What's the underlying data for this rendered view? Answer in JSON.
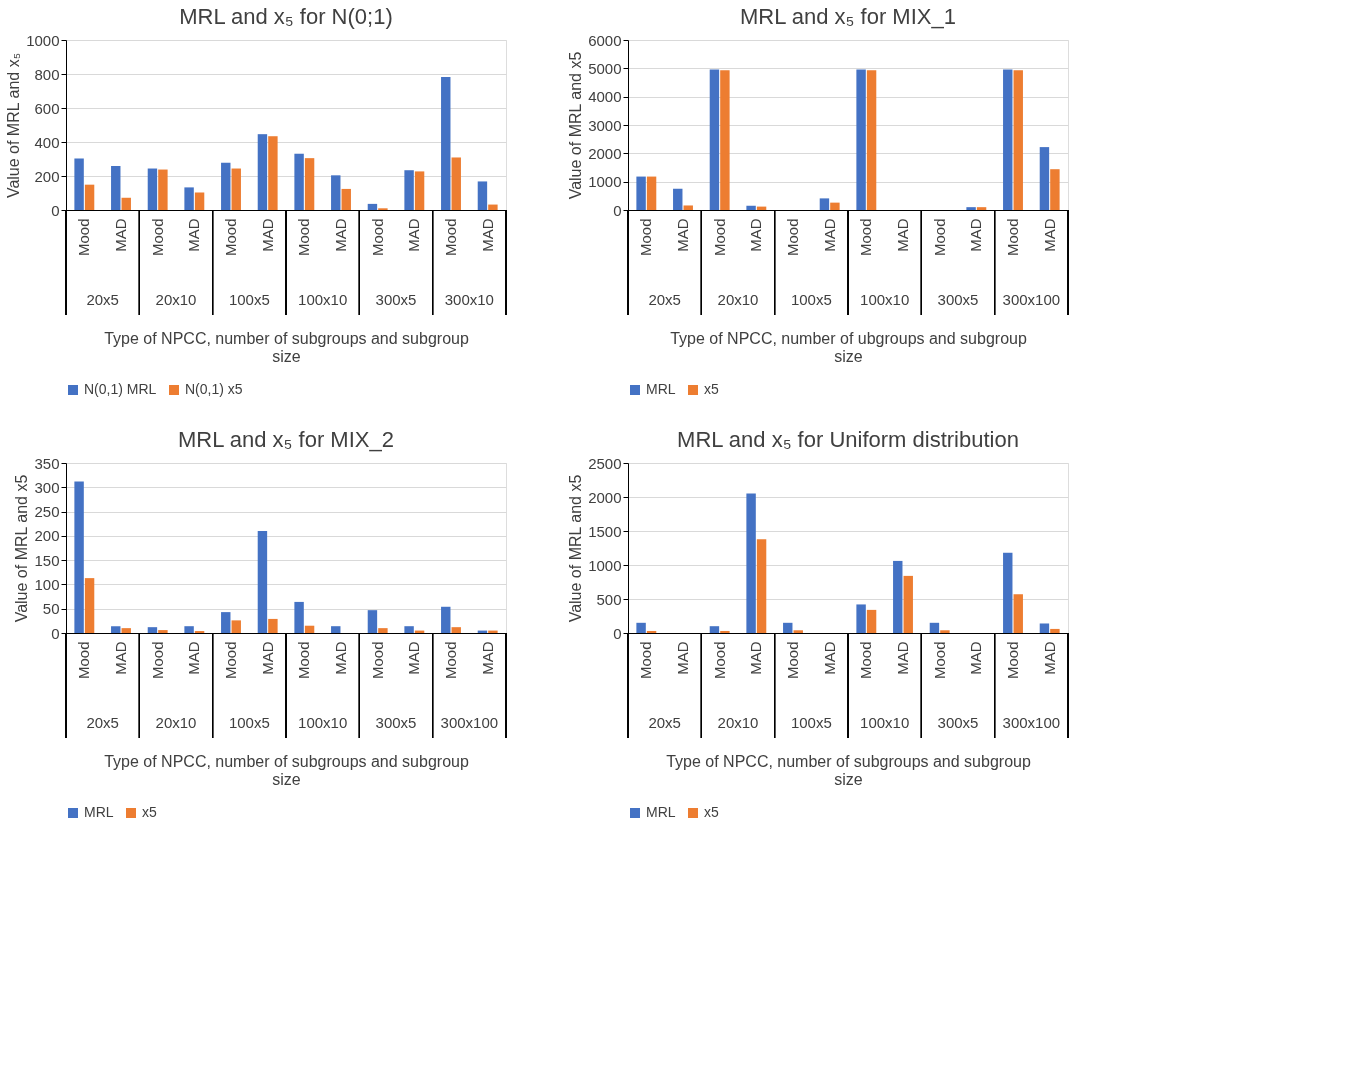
{
  "chart_data": [
    {
      "type": "bar",
      "title": "MRL and x₅ for N(0;1)",
      "ylabel": "Value of MRL and x₅",
      "xlabel": "Type of NPCC, number of subgroups and subgroup size",
      "categories": [
        "Mood",
        "MAD",
        "Mood",
        "MAD",
        "Mood",
        "MAD",
        "Mood",
        "MAD",
        "Mood",
        "MAD",
        "Mood",
        "MAD"
      ],
      "annotations": [
        "20x5",
        "20x10",
        "100x5",
        "100x10",
        "300x5",
        "300x10"
      ],
      "ylim": [
        0,
        1000
      ],
      "yticks": [
        0,
        200,
        400,
        600,
        800,
        1000
      ],
      "grid": "y",
      "legend": "bottom",
      "series": [
        {
          "name": "N(0,1) MRL",
          "color": "#4472c4",
          "values": [
            303,
            259,
            244,
            133,
            278,
            446,
            331,
            204,
            36,
            234,
            783,
            168
          ]
        },
        {
          "name": "N(0,1) x5",
          "color": "#ed7d31",
          "values": [
            149,
            72,
            238,
            103,
            244,
            434,
            305,
            124,
            10,
            227,
            309,
            32
          ]
        }
      ]
    },
    {
      "type": "bar",
      "title": "MRL and x₅ for MIX_1",
      "ylabel": "Value of MRL and x5",
      "xlabel": "Type of NPCC, number of ubgroups and subgroup size",
      "categories": [
        "Mood",
        "MAD",
        "Mood",
        "MAD",
        "Mood",
        "MAD",
        "Mood",
        "MAD",
        "Mood",
        "MAD",
        "Mood",
        "MAD"
      ],
      "annotations": [
        "20x5",
        "20x10",
        "100x5",
        "100x10",
        "300x5",
        "300x100"
      ],
      "ylim": [
        0,
        6000
      ],
      "yticks": [
        0,
        1000,
        2000,
        3000,
        4000,
        5000,
        6000
      ],
      "grid": "y",
      "legend": "bottom",
      "series": [
        {
          "name": "MRL",
          "color": "#4472c4",
          "values": [
            1180,
            750,
            4960,
            150,
            0,
            410,
            4960,
            0,
            0,
            100,
            4960,
            2220
          ]
        },
        {
          "name": "x5",
          "color": "#ed7d31",
          "values": [
            1180,
            160,
            4930,
            120,
            0,
            260,
            4930,
            0,
            0,
            100,
            4930,
            1440
          ]
        }
      ]
    },
    {
      "type": "bar",
      "title": "MRL and x₅ for MIX_2",
      "ylabel": "Value of MRL and x5",
      "xlabel": "Type of NPCC, number of subgroups and subgroup size",
      "categories": [
        "Mood",
        "MAD",
        "Mood",
        "MAD",
        "Mood",
        "MAD",
        "Mood",
        "MAD",
        "Mood",
        "MAD",
        "Mood",
        "MAD"
      ],
      "annotations": [
        "20x5",
        "20x10",
        "100x5",
        "100x10",
        "300x5",
        "300x100"
      ],
      "ylim": [
        0,
        350
      ],
      "yticks": [
        0,
        50,
        100,
        150,
        200,
        250,
        300,
        350
      ],
      "grid": "y",
      "legend": "bottom",
      "series": [
        {
          "name": "MRL",
          "color": "#4472c4",
          "values": [
            312,
            14,
            12,
            14,
            43,
            210,
            64,
            14,
            47,
            14,
            54,
            5
          ]
        },
        {
          "name": "x5",
          "color": "#ed7d31",
          "values": [
            113,
            10,
            6,
            4,
            26,
            29,
            15,
            0,
            10,
            5,
            12,
            5
          ]
        }
      ]
    },
    {
      "type": "bar",
      "title": "MRL and x₅ for Uniform distribution",
      "ylabel": "Value of MRL and x5",
      "xlabel": "Type of NPCC, number of subgroups and subgroup size",
      "categories": [
        "Mood",
        "MAD",
        "Mood",
        "MAD",
        "Mood",
        "MAD",
        "Mood",
        "MAD",
        "Mood",
        "MAD",
        "Mood",
        "MAD"
      ],
      "annotations": [
        "20x5",
        "20x10",
        "100x5",
        "100x10",
        "300x5",
        "300x100"
      ],
      "ylim": [
        0,
        2500
      ],
      "yticks": [
        0,
        500,
        1000,
        1500,
        2000,
        2500
      ],
      "grid": "y",
      "legend": "bottom",
      "series": [
        {
          "name": "MRL",
          "color": "#4472c4",
          "values": [
            150,
            0,
            100,
            2050,
            150,
            0,
            420,
            1060,
            150,
            0,
            1180,
            140
          ]
        },
        {
          "name": "x5",
          "color": "#ed7d31",
          "values": [
            30,
            0,
            30,
            1380,
            40,
            0,
            340,
            840,
            40,
            0,
            570,
            60
          ]
        }
      ]
    }
  ]
}
